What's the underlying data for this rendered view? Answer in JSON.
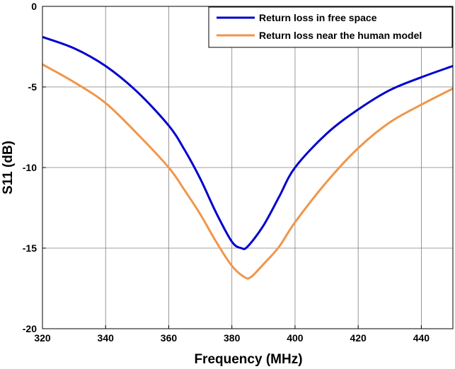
{
  "chart_data": {
    "type": "line",
    "xlabel": "Frequency (MHz)",
    "ylabel": "S11 (dB)",
    "xlim": [
      320,
      450
    ],
    "ylim": [
      -20,
      0
    ],
    "xticks": [
      320,
      340,
      360,
      380,
      400,
      420,
      440
    ],
    "yticks": [
      0,
      -5,
      -10,
      -15,
      -20
    ],
    "grid": true,
    "legend_position": "top-right",
    "series": [
      {
        "name": "Return loss in free space",
        "color": "#0000cc",
        "x": [
          320,
          330,
          340,
          350,
          360,
          365,
          370,
          375,
          380,
          383,
          385,
          390,
          395,
          400,
          410,
          420,
          430,
          440,
          450
        ],
        "y": [
          -1.9,
          -2.6,
          -3.7,
          -5.3,
          -7.4,
          -8.9,
          -10.7,
          -12.8,
          -14.6,
          -15.0,
          -14.9,
          -13.6,
          -11.8,
          -10.0,
          -7.9,
          -6.4,
          -5.2,
          -4.4,
          -3.7
        ]
      },
      {
        "name": "Return loss near the human model",
        "color": "#f0964a",
        "x": [
          320,
          330,
          340,
          350,
          360,
          365,
          370,
          375,
          380,
          384,
          386,
          390,
          395,
          400,
          410,
          420,
          430,
          440,
          450
        ],
        "y": [
          -3.6,
          -4.7,
          -6.0,
          -7.9,
          -10.0,
          -11.4,
          -12.9,
          -14.6,
          -16.1,
          -16.8,
          -16.8,
          -16.0,
          -14.9,
          -13.4,
          -10.9,
          -8.8,
          -7.2,
          -6.1,
          -5.1
        ]
      }
    ]
  }
}
